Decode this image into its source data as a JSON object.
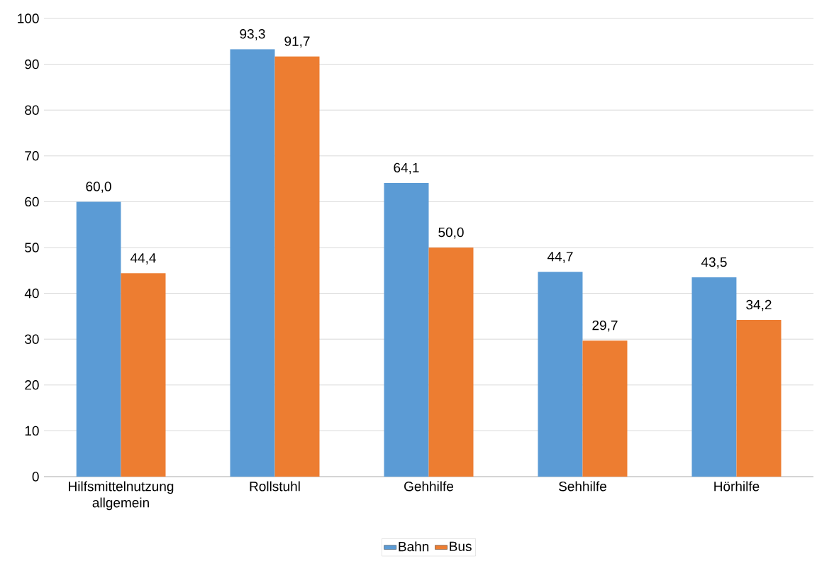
{
  "chart_data": {
    "type": "bar",
    "categories": [
      "Hilfsmittelnutzung allgemein",
      "Rollstuhl",
      "Gehhilfe",
      "Sehhilfe",
      "Hörhilfe"
    ],
    "series": [
      {
        "name": "Bahn",
        "color": "#5b9bd5",
        "values": [
          60.0,
          93.3,
          64.1,
          44.7,
          43.5
        ],
        "value_labels": [
          "60,0",
          "93,3",
          "64,1",
          "44,7",
          "43,5"
        ]
      },
      {
        "name": "Bus",
        "color": "#ed7d31",
        "values": [
          44.4,
          91.7,
          50.0,
          29.7,
          34.2
        ],
        "value_labels": [
          "44,4",
          "91,7",
          "50,0",
          "29,7",
          "34,2"
        ]
      }
    ],
    "ylim": [
      0,
      100
    ],
    "yticks": [
      0,
      10,
      20,
      30,
      40,
      50,
      60,
      70,
      80,
      90,
      100
    ],
    "grid": "y",
    "legend": "bottom"
  }
}
